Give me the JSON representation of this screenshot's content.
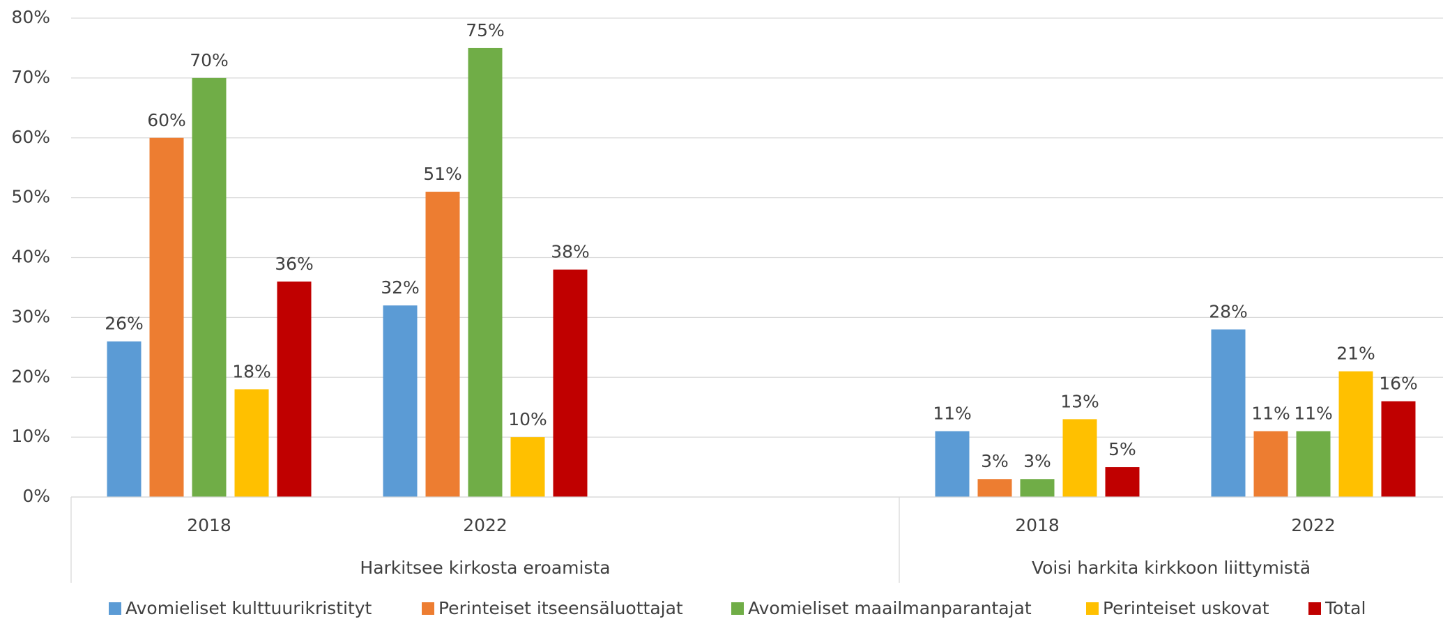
{
  "chart_data": {
    "type": "bar",
    "groups": [
      {
        "name": "Harkitsee kirkosta eroamista",
        "categories": [
          "2018",
          "2022",
          null
        ]
      },
      {
        "name": "Voisi harkita kirkkoon liittymistä",
        "categories": [
          "2018",
          "2022"
        ]
      }
    ],
    "series": [
      {
        "name": "Avomieliset kulttuurikristityt",
        "color": "#5b9bd5",
        "values": [
          26,
          32,
          null,
          11,
          28
        ],
        "value_labels": [
          "26%",
          "32%",
          null,
          "11%",
          "28%"
        ]
      },
      {
        "name": "Perinteiset itseensäluottajat",
        "color": "#ed7d31",
        "values": [
          60,
          51,
          null,
          3,
          11
        ],
        "value_labels": [
          "60%",
          "51%",
          null,
          "3%",
          "11%"
        ]
      },
      {
        "name": "Avomieliset maailmanparantajat",
        "color": "#70ad47",
        "values": [
          70,
          75,
          null,
          3,
          11
        ],
        "value_labels": [
          "70%",
          "75%",
          null,
          "3%",
          "11%"
        ]
      },
      {
        "name": "Perinteiset uskovat",
        "color": "#ffc000",
        "values": [
          18,
          10,
          null,
          13,
          21
        ],
        "value_labels": [
          "18%",
          "10%",
          null,
          "13%",
          "21%"
        ]
      },
      {
        "name": "Total",
        "color": "#c00000",
        "values": [
          36,
          38,
          null,
          5,
          16
        ],
        "value_labels": [
          "36%",
          "38%",
          null,
          "5%",
          "16%"
        ]
      }
    ],
    "ylim": [
      0,
      80
    ],
    "yticks": [
      {
        "value": 0,
        "label": "0%"
      },
      {
        "value": 10,
        "label": "10%"
      },
      {
        "value": 20,
        "label": "20%"
      },
      {
        "value": 30,
        "label": "30%"
      },
      {
        "value": 40,
        "label": "40%"
      },
      {
        "value": 50,
        "label": "50%"
      },
      {
        "value": 60,
        "label": "60%"
      },
      {
        "value": 70,
        "label": "70%"
      },
      {
        "value": 80,
        "label": "80%"
      }
    ],
    "grid": true,
    "legend": "bottom"
  }
}
